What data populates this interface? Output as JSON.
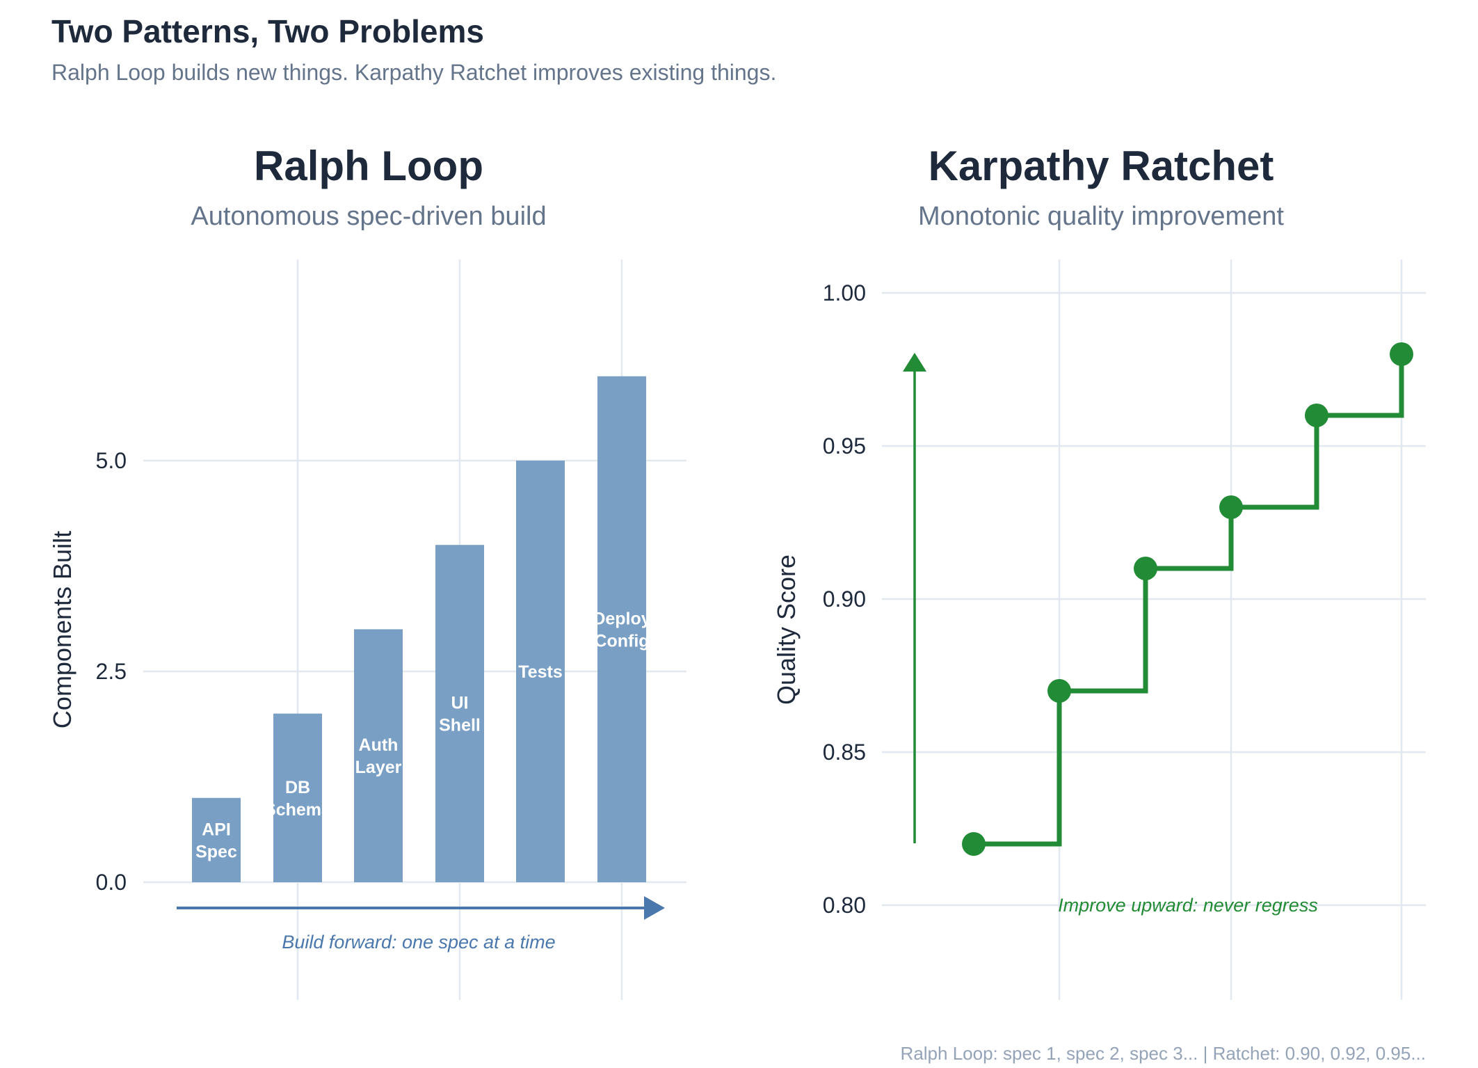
{
  "title": "Two Patterns, Two Problems",
  "subtitle": "Ralph Loop builds new things. Karpathy Ratchet improves existing things.",
  "footer": "Ralph Loop: spec 1, spec 2, spec 3... | Ratchet: 0.90, 0.92, 0.95...",
  "chart_data": [
    {
      "type": "bar",
      "title": "Ralph Loop",
      "subtitle": "Autonomous spec-driven build",
      "ylabel": "Components Built",
      "xlabel": "",
      "categories": [
        "API\nSpec",
        "DB\nSchema",
        "Auth\nLayer",
        "UI\nShell",
        "Tests",
        "Deploy\nConfig"
      ],
      "values": [
        1,
        2,
        3,
        4,
        5,
        6
      ],
      "yticks": [
        "0.0",
        "2.5",
        "5.0"
      ],
      "ylim": [
        -1.4,
        7.4
      ],
      "grid": true,
      "bar_color": "#7a9fc4",
      "annotation": "Build forward: one spec at a time",
      "annotation_color": "#4a78ad"
    },
    {
      "type": "line",
      "step": "post",
      "title": "Karpathy Ratchet",
      "subtitle": "Monotonic quality improvement",
      "ylabel": "Quality Score",
      "xlabel": "",
      "x": [
        1,
        2,
        3,
        4,
        5,
        6
      ],
      "values": [
        0.82,
        0.87,
        0.91,
        0.93,
        0.96,
        0.98
      ],
      "yticks": [
        "0.80",
        "0.85",
        "0.90",
        "0.95",
        "1.00"
      ],
      "ylim": [
        0.77,
        1.02
      ],
      "grid": true,
      "line_color": "#228b35",
      "annotation": "Improve upward: never regress",
      "annotation_color": "#228b35"
    }
  ]
}
